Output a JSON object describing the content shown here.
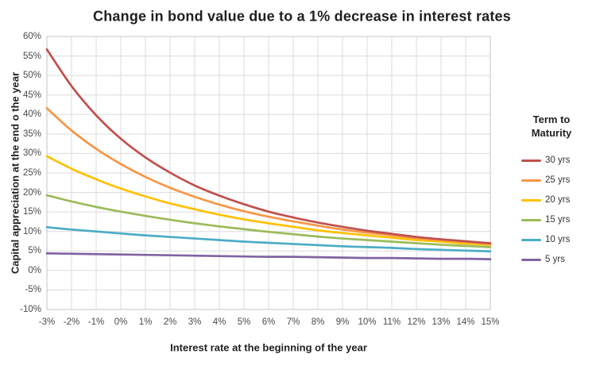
{
  "chart_data": {
    "type": "line",
    "title": "Change in bond value due to a 1% decrease in interest rates",
    "xlabel": "Interest rate at the beginning of the year",
    "ylabel": "Capital appreciation at the end o the year",
    "legend_title": "Term to Maturity",
    "legend_position": "right",
    "grid": true,
    "xlim": [
      -3,
      15
    ],
    "ylim": [
      -10,
      60
    ],
    "x": [
      -3,
      -2,
      -1,
      0,
      1,
      2,
      3,
      4,
      5,
      6,
      7,
      8,
      9,
      10,
      11,
      12,
      13,
      14,
      15
    ],
    "x_tick_labels": [
      "-3%",
      "-2%",
      "-1%",
      "0%",
      "1%",
      "2%",
      "3%",
      "4%",
      "5%",
      "6%",
      "7%",
      "8%",
      "9%",
      "10%",
      "11%",
      "12%",
      "13%",
      "14%",
      "15%"
    ],
    "y_ticks": [
      60,
      55,
      50,
      45,
      40,
      35,
      30,
      25,
      20,
      15,
      10,
      5,
      0,
      -5,
      -10
    ],
    "y_tick_labels": [
      "60%",
      "55%",
      "50%",
      "45%",
      "40%",
      "35%",
      "30%",
      "25%",
      "20%",
      "15%",
      "10%",
      "5%",
      "0%",
      "-5%",
      "-10%"
    ],
    "series": [
      {
        "name": "30 yrs",
        "color": "#C0504D",
        "values": [
          56.7,
          47.3,
          39.8,
          33.8,
          29.0,
          25.1,
          21.8,
          19.2,
          17.0,
          15.1,
          13.6,
          12.3,
          11.2,
          10.2,
          9.4,
          8.6,
          8.0,
          7.5,
          7.0
        ]
      },
      {
        "name": "25 yrs",
        "color": "#F79646",
        "values": [
          41.6,
          35.9,
          31.2,
          27.3,
          24.0,
          21.2,
          18.9,
          16.9,
          15.2,
          13.8,
          12.6,
          11.5,
          10.5,
          9.7,
          9.0,
          8.3,
          7.8,
          7.3,
          6.8
        ]
      },
      {
        "name": "20 yrs",
        "color": "#FFC000",
        "values": [
          29.3,
          26.1,
          23.4,
          21.0,
          19.0,
          17.2,
          15.7,
          14.3,
          13.1,
          12.1,
          11.2,
          10.3,
          9.6,
          9.0,
          8.4,
          7.8,
          7.4,
          6.9,
          6.6
        ]
      },
      {
        "name": "15 yrs",
        "color": "#9BBB59",
        "values": [
          19.3,
          17.7,
          16.3,
          15.1,
          14.0,
          13.0,
          12.1,
          11.3,
          10.6,
          9.9,
          9.3,
          8.7,
          8.2,
          7.8,
          7.4,
          7.0,
          6.6,
          6.3,
          6.0
        ]
      },
      {
        "name": "10 yrs",
        "color": "#4BACC6",
        "values": [
          11.1,
          10.5,
          10.0,
          9.5,
          9.0,
          8.6,
          8.2,
          7.8,
          7.4,
          7.1,
          6.8,
          6.5,
          6.2,
          6.0,
          5.8,
          5.5,
          5.3,
          5.1,
          4.9
        ]
      },
      {
        "name": "5 yrs",
        "color": "#8064A2",
        "values": [
          4.4,
          4.3,
          4.2,
          4.1,
          4.0,
          3.9,
          3.8,
          3.7,
          3.6,
          3.5,
          3.5,
          3.4,
          3.3,
          3.2,
          3.2,
          3.1,
          3.0,
          3.0,
          2.9
        ]
      }
    ]
  },
  "colors": {
    "background": "#FFFFFF",
    "grid": "#DBDBDB",
    "axis_frame": "#C6C6C6",
    "title_text": "#1F1F1F",
    "tick_text": "#4A4A4A",
    "legend_text": "#333333"
  }
}
